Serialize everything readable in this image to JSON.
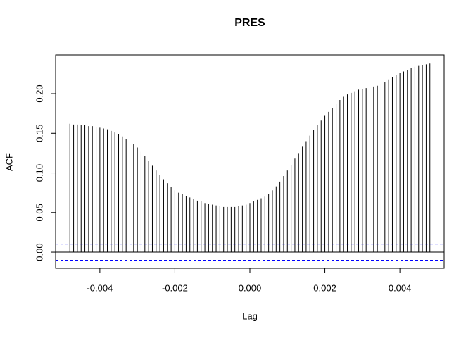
{
  "chart_data": {
    "type": "acf",
    "title": "PRES",
    "xlabel": "Lag",
    "ylabel": "ACF",
    "x": [
      -0.0048,
      -0.0047,
      -0.0046,
      -0.0045,
      -0.0044,
      -0.0043,
      -0.0042,
      -0.0041,
      -0.004,
      -0.0039,
      -0.0038,
      -0.0037,
      -0.0036,
      -0.0035,
      -0.0034,
      -0.0033,
      -0.0032,
      -0.0031,
      -0.003,
      -0.0029,
      -0.0028,
      -0.0027,
      -0.0026,
      -0.0025,
      -0.0024,
      -0.0023,
      -0.0022,
      -0.0021,
      -0.002,
      -0.0019,
      -0.0018,
      -0.0017,
      -0.0016,
      -0.0015,
      -0.0014,
      -0.0013,
      -0.0012,
      -0.0011,
      -0.001,
      -0.0009,
      -0.0008,
      -0.0007,
      -0.0006,
      -0.0005,
      -0.0004,
      -0.0003,
      -0.0002,
      -0.0001,
      0,
      0.0001,
      0.0002,
      0.0003,
      0.0004,
      0.0005,
      0.0006,
      0.0007,
      0.0008,
      0.0009,
      0.001,
      0.0011,
      0.0012,
      0.0013,
      0.0014,
      0.0015,
      0.0016,
      0.0017,
      0.0018,
      0.0019,
      0.002,
      0.0021,
      0.0022,
      0.0023,
      0.0024,
      0.0025,
      0.0026,
      0.0027,
      0.0028,
      0.0029,
      0.003,
      0.0031,
      0.0032,
      0.0033,
      0.0034,
      0.0035,
      0.0036,
      0.0037,
      0.0038,
      0.0039,
      0.004,
      0.0041,
      0.0042,
      0.0043,
      0.0044,
      0.0045,
      0.0046,
      0.0047,
      0.0048
    ],
    "values": [
      0.162,
      0.161,
      0.161,
      0.16,
      0.16,
      0.159,
      0.159,
      0.158,
      0.157,
      0.156,
      0.155,
      0.153,
      0.151,
      0.149,
      0.146,
      0.143,
      0.14,
      0.136,
      0.132,
      0.127,
      0.121,
      0.115,
      0.109,
      0.103,
      0.097,
      0.092,
      0.087,
      0.082,
      0.078,
      0.075,
      0.073,
      0.071,
      0.069,
      0.067,
      0.065,
      0.064,
      0.062,
      0.061,
      0.06,
      0.059,
      0.058,
      0.057,
      0.057,
      0.057,
      0.057,
      0.058,
      0.059,
      0.06,
      0.062,
      0.064,
      0.066,
      0.068,
      0.07,
      0.073,
      0.078,
      0.083,
      0.089,
      0.096,
      0.103,
      0.11,
      0.118,
      0.125,
      0.133,
      0.14,
      0.147,
      0.154,
      0.16,
      0.166,
      0.172,
      0.177,
      0.182,
      0.187,
      0.192,
      0.196,
      0.199,
      0.201,
      0.203,
      0.205,
      0.206,
      0.207,
      0.208,
      0.209,
      0.21,
      0.212,
      0.215,
      0.218,
      0.221,
      0.224,
      0.226,
      0.228,
      0.23,
      0.232,
      0.234,
      0.235,
      0.236,
      0.237,
      0.238
    ],
    "color": "#000000",
    "ci_levels": [
      0.0102,
      -0.0102
    ],
    "ci_color": "#0000ff",
    "xlim": [
      -0.00518,
      0.00518
    ],
    "ylim": [
      -0.0204,
      0.2489
    ],
    "xticks": [
      -0.004,
      -0.002,
      {
        "value": 0,
        "label": "0.000"
      },
      0.002,
      0.004
    ],
    "yticks": [
      {
        "value": 0,
        "label": "0.00"
      },
      0.05,
      {
        "value": 0.1,
        "label": "0.10"
      },
      0.15,
      {
        "value": 0.2,
        "label": "0.20"
      }
    ]
  }
}
